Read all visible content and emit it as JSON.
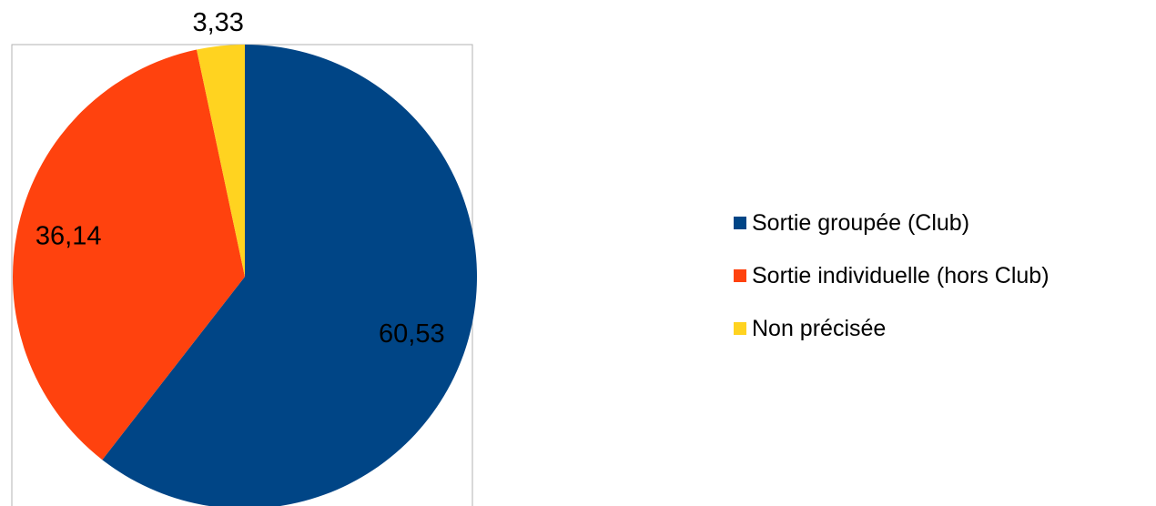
{
  "chart_data": {
    "type": "pie",
    "title": "",
    "categories": [
      "Sortie groupée (Club)",
      "Sortie individuelle (hors Club)",
      "Non précisée"
    ],
    "values": [
      60.53,
      36.14,
      3.33
    ],
    "value_labels": [
      "60,53",
      "36,14",
      "3,33"
    ],
    "colors": [
      "#004586",
      "#ff420e",
      "#ffd320"
    ],
    "start_angle": "12 o'clock",
    "direction": "clockwise",
    "legend_position": "right",
    "plot_frame": true
  }
}
